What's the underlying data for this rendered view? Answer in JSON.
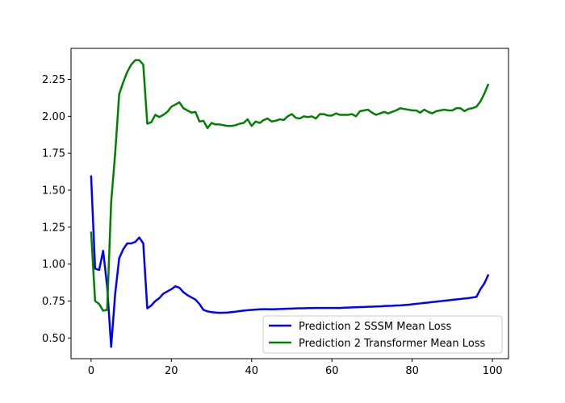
{
  "chart_data": {
    "type": "line",
    "title": "",
    "xlabel": "",
    "ylabel": "",
    "xlim": [
      -5,
      104
    ],
    "ylim": [
      0.36,
      2.46
    ],
    "xticks": [
      0,
      20,
      40,
      60,
      80,
      100
    ],
    "yticks": [
      0.5,
      0.75,
      1.0,
      1.25,
      1.5,
      1.75,
      2.0,
      2.25
    ],
    "xtick_labels": [
      "0",
      "20",
      "40",
      "60",
      "80",
      "100"
    ],
    "ytick_labels": [
      "0.50",
      "0.75",
      "1.00",
      "1.25",
      "1.50",
      "1.75",
      "2.00",
      "2.25"
    ],
    "grid": false,
    "legend_position": "lower-right",
    "series": [
      {
        "name": "Prediction 2 SSSM Mean Loss",
        "color": "#0000ff",
        "x": [
          0,
          1,
          2,
          3,
          4,
          5,
          6,
          7,
          8,
          9,
          10,
          11,
          12,
          13,
          14,
          15,
          16,
          17,
          18,
          19,
          20,
          21,
          22,
          23,
          24,
          25,
          26,
          27,
          28,
          29,
          30,
          31,
          32,
          33,
          34,
          35,
          36,
          37,
          38,
          39,
          40,
          41,
          42,
          43,
          44,
          45,
          46,
          47,
          48,
          49,
          50,
          51,
          52,
          53,
          54,
          55,
          56,
          57,
          58,
          59,
          60,
          61,
          62,
          63,
          64,
          65,
          66,
          67,
          68,
          69,
          70,
          71,
          72,
          73,
          74,
          75,
          76,
          77,
          78,
          79,
          80,
          81,
          82,
          83,
          84,
          85,
          86,
          87,
          88,
          89,
          90,
          91,
          92,
          93,
          94,
          95,
          96,
          97,
          98,
          99
        ],
        "y": [
          1.6,
          0.97,
          0.96,
          1.09,
          0.85,
          0.44,
          0.8,
          1.04,
          1.1,
          1.14,
          1.14,
          1.15,
          1.18,
          1.14,
          0.7,
          0.72,
          0.75,
          0.77,
          0.8,
          0.815,
          0.83,
          0.85,
          0.84,
          0.81,
          0.79,
          0.775,
          0.76,
          0.73,
          0.69,
          0.68,
          0.675,
          0.672,
          0.67,
          0.671,
          0.672,
          0.675,
          0.678,
          0.682,
          0.685,
          0.688,
          0.69,
          0.692,
          0.694,
          0.695,
          0.695,
          0.694,
          0.695,
          0.696,
          0.697,
          0.698,
          0.699,
          0.7,
          0.701,
          0.701,
          0.702,
          0.702,
          0.703,
          0.703,
          0.703,
          0.703,
          0.703,
          0.703,
          0.703,
          0.705,
          0.706,
          0.707,
          0.708,
          0.709,
          0.71,
          0.711,
          0.712,
          0.713,
          0.714,
          0.716,
          0.717,
          0.718,
          0.72,
          0.721,
          0.723,
          0.725,
          0.728,
          0.731,
          0.734,
          0.737,
          0.74,
          0.743,
          0.746,
          0.749,
          0.752,
          0.755,
          0.758,
          0.761,
          0.764,
          0.767,
          0.77,
          0.774,
          0.778,
          0.83,
          0.87,
          0.93
        ]
      },
      {
        "name": "Prediction 2 Transformer Mean Loss",
        "color": "#008000",
        "x": [
          0,
          1,
          2,
          3,
          4,
          5,
          6,
          7,
          8,
          9,
          10,
          11,
          12,
          13,
          14,
          15,
          16,
          17,
          18,
          19,
          20,
          21,
          22,
          23,
          24,
          25,
          26,
          27,
          28,
          29,
          30,
          31,
          32,
          33,
          34,
          35,
          36,
          37,
          38,
          39,
          40,
          41,
          42,
          43,
          44,
          45,
          46,
          47,
          48,
          49,
          50,
          51,
          52,
          53,
          54,
          55,
          56,
          57,
          58,
          59,
          60,
          61,
          62,
          63,
          64,
          65,
          66,
          67,
          68,
          69,
          70,
          71,
          72,
          73,
          74,
          75,
          76,
          77,
          78,
          79,
          80,
          81,
          82,
          83,
          84,
          85,
          86,
          87,
          88,
          89,
          90,
          91,
          92,
          93,
          94,
          95,
          96,
          97,
          98,
          99
        ],
        "y": [
          1.22,
          0.75,
          0.73,
          0.685,
          0.69,
          1.42,
          1.75,
          2.15,
          2.23,
          2.3,
          2.35,
          2.38,
          2.38,
          2.35,
          1.95,
          1.96,
          2.01,
          1.995,
          2.01,
          2.03,
          2.065,
          2.08,
          2.095,
          2.055,
          2.04,
          2.025,
          2.03,
          1.965,
          1.97,
          1.92,
          1.955,
          1.945,
          1.945,
          1.94,
          1.935,
          1.935,
          1.94,
          1.95,
          1.955,
          1.98,
          1.935,
          1.965,
          1.955,
          1.975,
          1.985,
          1.965,
          1.97,
          1.98,
          1.975,
          2.0,
          2.015,
          1.99,
          1.985,
          2.0,
          1.995,
          2.0,
          1.985,
          2.015,
          2.015,
          2.005,
          2.005,
          2.02,
          2.01,
          2.01,
          2.01,
          2.015,
          2.0,
          2.035,
          2.04,
          2.045,
          2.025,
          2.01,
          2.02,
          2.03,
          2.02,
          2.03,
          2.04,
          2.055,
          2.05,
          2.045,
          2.04,
          2.04,
          2.025,
          2.045,
          2.03,
          2.02,
          2.035,
          2.04,
          2.045,
          2.04,
          2.04,
          2.055,
          2.055,
          2.035,
          2.05,
          2.055,
          2.065,
          2.1,
          2.155,
          2.22
        ]
      }
    ]
  }
}
